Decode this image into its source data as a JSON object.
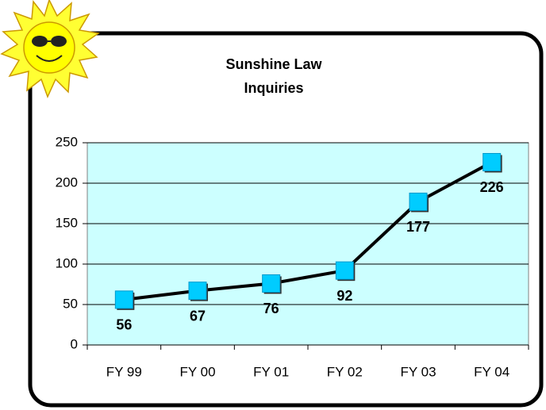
{
  "chart_data": {
    "type": "line",
    "title": "Sunshine Law\nInquiries",
    "categories": [
      "FY 99",
      "FY 00",
      "FY 01",
      "FY 02",
      "FY 03",
      "FY 04"
    ],
    "values": [
      56,
      67,
      76,
      92,
      177,
      226
    ],
    "color": "#000000",
    "marker_color": "#00ccff",
    "plot_background": "#ccffff",
    "ylim": [
      0,
      250
    ],
    "yticks": [
      0,
      50,
      100,
      150,
      200,
      250
    ],
    "grid": true
  }
}
